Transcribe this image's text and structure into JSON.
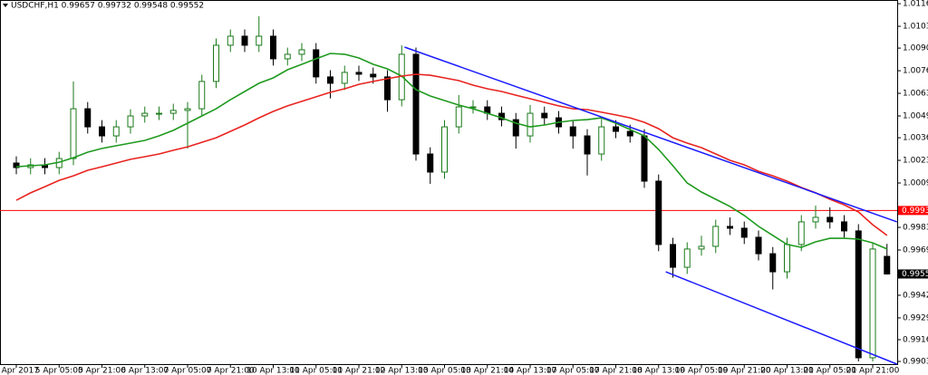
{
  "chart_data": {
    "type": "candlestick",
    "title": "USDCHF,H1 0.99657 0.99732 0.99548 0.99552",
    "categories": [
      "4 Apr 2017",
      null,
      null,
      "5 Apr 05:00",
      null,
      null,
      "5 Apr 21:00",
      null,
      null,
      "6 Apr 13:00",
      null,
      null,
      "7 Apr 05:00",
      null,
      null,
      "7 Apr 21:00",
      null,
      null,
      "10 Apr 13:00",
      null,
      null,
      "11 Apr 05:00",
      null,
      null,
      "11 Apr 21:00",
      null,
      null,
      "12 Apr 13:00",
      null,
      null,
      "13 Apr 05:00",
      null,
      null,
      "13 Apr 21:00",
      null,
      null,
      "14 Apr 13:00",
      null,
      null,
      "17 Apr 05:00",
      null,
      null,
      "17 Apr 21:00",
      null,
      null,
      "18 Apr 13:00",
      null,
      null,
      "19 Apr 05:00",
      null,
      null,
      "19 Apr 21:00",
      null,
      null,
      "20 Apr 13:00",
      null,
      null,
      "21 Apr 05:00",
      null,
      null,
      "21 Apr 21:00",
      null
    ],
    "open": [
      1.00214,
      1.00187,
      1.00203,
      1.00187,
      1.00241,
      1.00538,
      1.0043,
      1.00376,
      1.0043,
      1.00495,
      1.00511,
      1.00511,
      1.00528,
      1.00538,
      1.00701,
      1.00917,
      1.00971,
      1.00917,
      1.00971,
      1.00836,
      1.00863,
      1.0089,
      1.00728,
      1.0069,
      1.00755,
      1.00744,
      1.00728,
      1.00592,
      1.00863,
      1.00268,
      1.0016,
      1.0043,
      1.00549,
      1.00549,
      1.00511,
      1.00473,
      1.00376,
      1.00511,
      1.00484,
      1.0043,
      1.00376,
      1.00268,
      1.0043,
      1.00403,
      1.00376,
      1.00106,
      0.99728,
      0.99592,
      0.99701,
      0.99717,
      0.99836,
      0.99825,
      0.99771,
      0.99673,
      0.99565,
      0.99728,
      0.99863,
      0.9989,
      0.99863,
      0.99809,
      0.99052,
      0.99657
    ],
    "high": [
      1.00254,
      1.00243,
      1.00243,
      1.00281,
      1.00701,
      1.00578,
      1.0047,
      1.0047,
      1.00535,
      1.00551,
      1.00551,
      1.00568,
      1.00578,
      1.00741,
      1.00957,
      1.01011,
      1.01011,
      1.0109,
      1.01011,
      1.00903,
      1.0093,
      1.0093,
      1.00768,
      1.00795,
      1.00795,
      1.00784,
      1.00768,
      1.00917,
      1.00903,
      1.00308,
      1.0047,
      1.0062,
      1.00589,
      1.00589,
      1.00551,
      1.00513,
      1.0056,
      1.00551,
      1.00524,
      1.0047,
      1.00416,
      1.0048,
      1.0047,
      1.00443,
      1.00416,
      1.00146,
      0.99768,
      0.99741,
      0.9978,
      0.99876,
      0.9989,
      0.99865,
      0.99811,
      0.99713,
      0.99768,
      0.99903,
      0.9996,
      0.9995,
      0.99903,
      0.99849,
      0.99741,
      0.99732
    ],
    "low": [
      1.00147,
      1.00147,
      1.00147,
      1.00147,
      1.00201,
      1.0039,
      1.00336,
      1.00336,
      1.0039,
      1.00455,
      1.00471,
      1.00471,
      1.003,
      1.00498,
      1.00661,
      1.00877,
      1.00877,
      1.00877,
      1.00796,
      1.00796,
      1.00823,
      1.00688,
      1.006,
      1.0065,
      1.00704,
      1.00688,
      1.0052,
      1.00552,
      1.00228,
      1.0009,
      1.0012,
      1.0039,
      1.00509,
      1.00471,
      1.00433,
      1.003,
      1.00336,
      1.00444,
      1.0039,
      1.003,
      1.0014,
      1.00228,
      1.00363,
      1.00336,
      1.00066,
      0.99688,
      0.9953,
      0.99552,
      0.99661,
      0.99677,
      0.99785,
      0.99731,
      0.99633,
      0.9946,
      0.99525,
      0.99688,
      0.99823,
      0.99823,
      0.99769,
      0.9903,
      0.9903,
      0.99548
    ],
    "close": [
      1.00187,
      1.00203,
      1.00187,
      1.00241,
      1.00538,
      1.0043,
      1.00376,
      1.0043,
      1.00495,
      1.00511,
      1.00511,
      1.00528,
      1.00538,
      1.00701,
      1.00917,
      1.00971,
      1.00917,
      1.00971,
      1.00836,
      1.00863,
      1.0089,
      1.00728,
      1.0069,
      1.00755,
      1.00744,
      1.00728,
      1.00592,
      1.00863,
      1.00268,
      1.0016,
      1.0043,
      1.00549,
      1.00549,
      1.00511,
      1.00473,
      1.00376,
      1.00511,
      1.00484,
      1.0043,
      1.00376,
      1.00268,
      1.0043,
      1.00403,
      1.00376,
      1.00106,
      0.99728,
      0.99592,
      0.99701,
      0.99717,
      0.99836,
      0.99825,
      0.99771,
      0.99673,
      0.99565,
      0.99728,
      0.99863,
      0.9989,
      0.99863,
      0.99809,
      0.99052,
      0.99701,
      0.99552
    ],
    "up_color": "#1a7a1a",
    "down_color": "#000000",
    "lines": [
      {
        "color": "#1f9a1f",
        "values": [
          1.00192,
          1.00198,
          1.00203,
          1.00219,
          1.00246,
          1.00279,
          1.00301,
          1.00317,
          1.00333,
          1.00349,
          1.00376,
          1.00409,
          1.00452,
          1.00495,
          1.00538,
          1.00592,
          1.00641,
          1.0069,
          1.00722,
          1.00771,
          1.00803,
          1.00836,
          1.00868,
          1.00863,
          1.00841,
          1.00803,
          1.00776,
          1.00733,
          1.00652,
          1.00614,
          1.00587,
          1.0056,
          1.00538,
          1.00511,
          1.00484,
          1.00452,
          1.0043,
          1.00441,
          1.00457,
          1.00468,
          1.00473,
          1.00484,
          1.00452,
          1.00414,
          1.00376,
          1.00295,
          1.00198,
          1.00095,
          1.00041,
          0.99998,
          0.99955,
          0.99901,
          0.99836,
          0.99782,
          0.99728,
          0.99711,
          0.99744,
          0.99765,
          0.99765,
          0.9976,
          0.99738,
          0.99701
        ]
      },
      {
        "color": "#e8231f",
        "values": [
          0.99992,
          1.00036,
          1.00073,
          1.00111,
          1.00138,
          1.00171,
          1.00192,
          1.00214,
          1.00236,
          1.00252,
          1.00268,
          1.0029,
          1.00311,
          1.00338,
          1.00365,
          1.00403,
          1.00441,
          1.00484,
          1.00522,
          1.00555,
          1.00582,
          1.00609,
          1.00636,
          1.00657,
          1.00684,
          1.00701,
          1.00717,
          1.00733,
          1.00744,
          1.00738,
          1.00722,
          1.00706,
          1.00679,
          1.00657,
          1.00641,
          1.00619,
          1.00598,
          1.00576,
          1.00555,
          1.00538,
          1.00533,
          1.00517,
          1.00501,
          1.00484,
          1.00457,
          1.00419,
          1.00365,
          1.00333,
          1.00306,
          1.00268,
          1.0023,
          1.00203,
          1.00165,
          1.00138,
          1.00106,
          1.00068,
          1.00036,
          0.99998,
          0.99965,
          0.99922,
          0.99846,
          0.99782
        ]
      }
    ],
    "trendlines": [
      {
        "color": "#1a1aff",
        "x": [
          27.2,
          61.7
        ],
        "values": [
          1.00906,
          0.99863
        ]
      },
      {
        "color": "#1a1aff",
        "x": [
          45.5,
          61.7
        ],
        "values": [
          0.99565,
          0.99014
        ]
      }
    ],
    "hline": {
      "value": 0.99931,
      "label": "0.99931",
      "color": "#ff0000"
    },
    "last_price": {
      "value": 0.99552,
      "label": "0.99552"
    },
    "ylim": [
      0.99014,
      1.01187
    ],
    "yticks": [
      {
        "value": 1.01165,
        "label": "1.01165"
      },
      {
        "value": 1.0103,
        "label": "1.01030"
      },
      {
        "value": 1.009,
        "label": "1.00900"
      },
      {
        "value": 1.00765,
        "label": "1.00765"
      },
      {
        "value": 1.0063,
        "label": "1.00630"
      },
      {
        "value": 1.00495,
        "label": "1.00495"
      },
      {
        "value": 1.00365,
        "label": "1.00365"
      },
      {
        "value": 1.0023,
        "label": "1.00230"
      },
      {
        "value": 1.00095,
        "label": "1.00095"
      },
      {
        "value": 0.9983,
        "label": "0.99830"
      },
      {
        "value": 0.99695,
        "label": "0.99695"
      },
      {
        "value": 0.99425,
        "label": "0.99425"
      },
      {
        "value": 0.9929,
        "label": "0.99290"
      },
      {
        "value": 0.9916,
        "label": "0.99160"
      },
      {
        "value": 0.9903,
        "label": "0.99030"
      }
    ]
  }
}
